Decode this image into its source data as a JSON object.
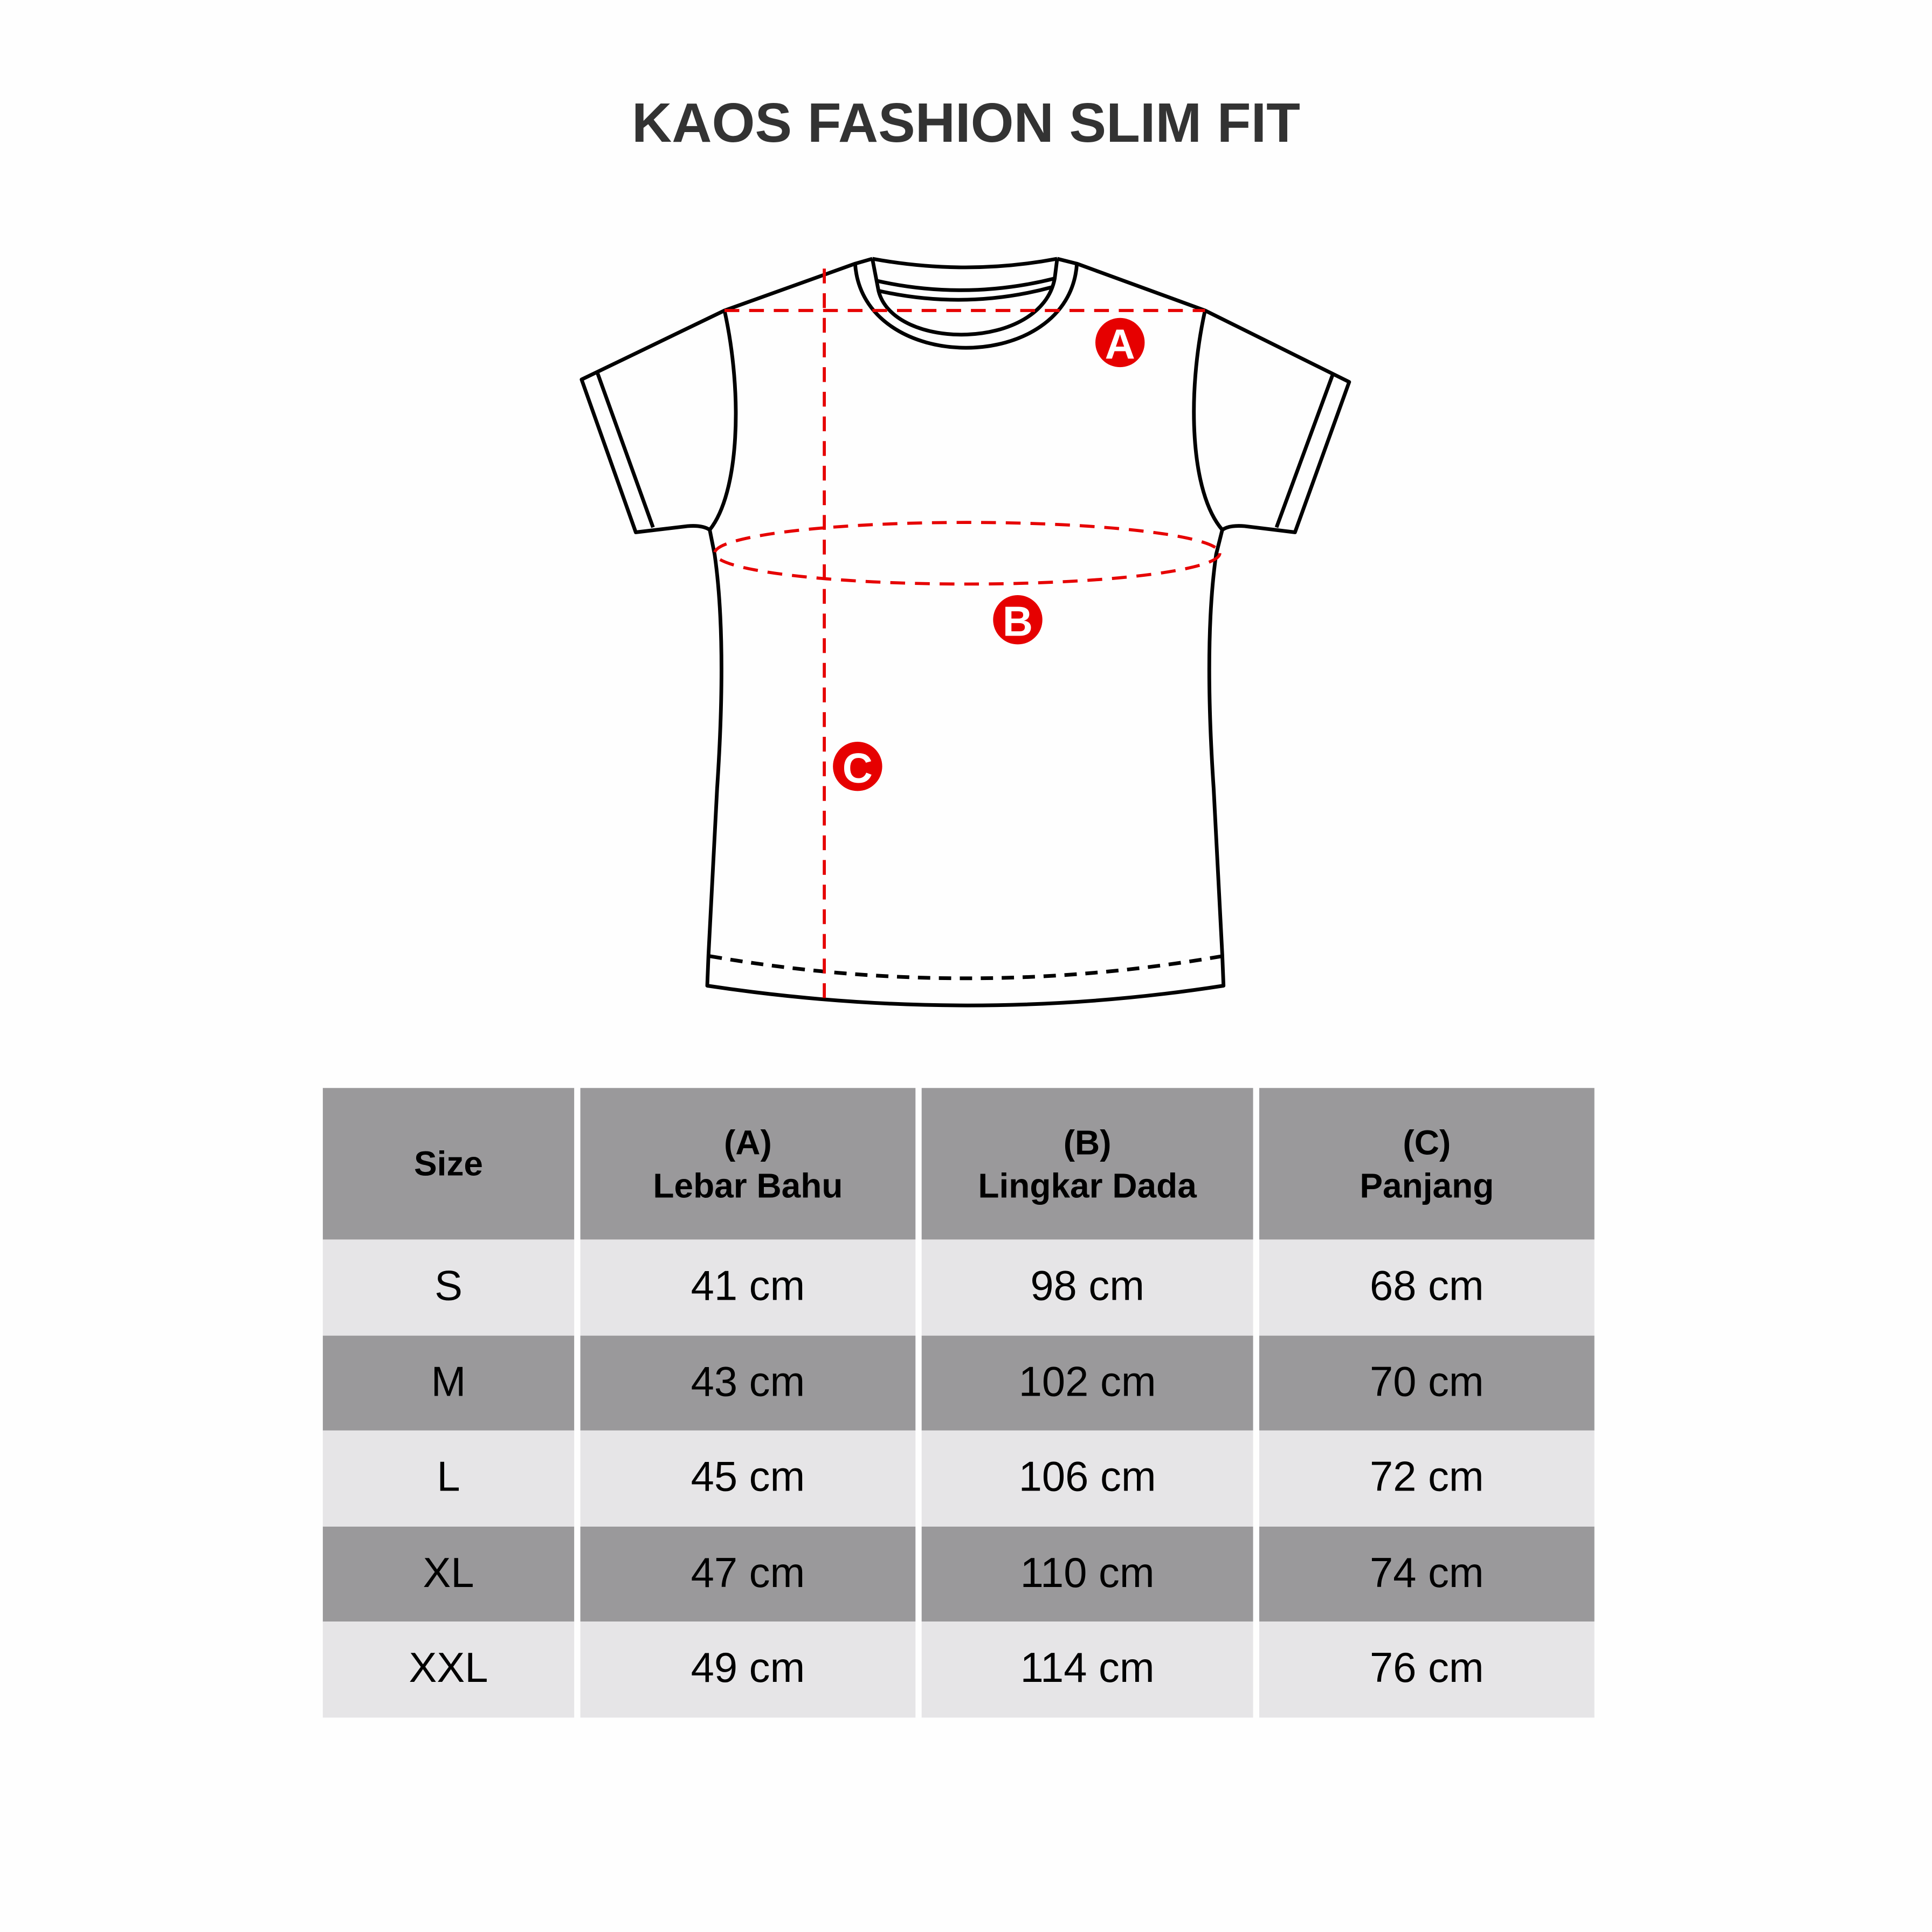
{
  "title": "KAOS FASHION SLIM FIT",
  "markers": {
    "a": "A",
    "b": "B",
    "c": "C"
  },
  "colors": {
    "marker": "#e60000",
    "header_bg": "#9a999b",
    "row_light": "#e6e5e7",
    "row_dark": "#9a999b"
  },
  "table": {
    "headers": [
      {
        "line1": "",
        "line2": "Size"
      },
      {
        "line1": "(A)",
        "line2": "Lebar Bahu"
      },
      {
        "line1": "(B)",
        "line2": "Lingkar Dada"
      },
      {
        "line1": "(C)",
        "line2": "Panjang"
      }
    ],
    "rows": [
      [
        "S",
        "41 cm",
        "98 cm",
        "68 cm"
      ],
      [
        "M",
        "43 cm",
        "102 cm",
        "70 cm"
      ],
      [
        "L",
        "45 cm",
        "106 cm",
        "72 cm"
      ],
      [
        "XL",
        "47 cm",
        "110 cm",
        "74 cm"
      ],
      [
        "XXL",
        "49 cm",
        "114 cm",
        "76 cm"
      ]
    ]
  }
}
